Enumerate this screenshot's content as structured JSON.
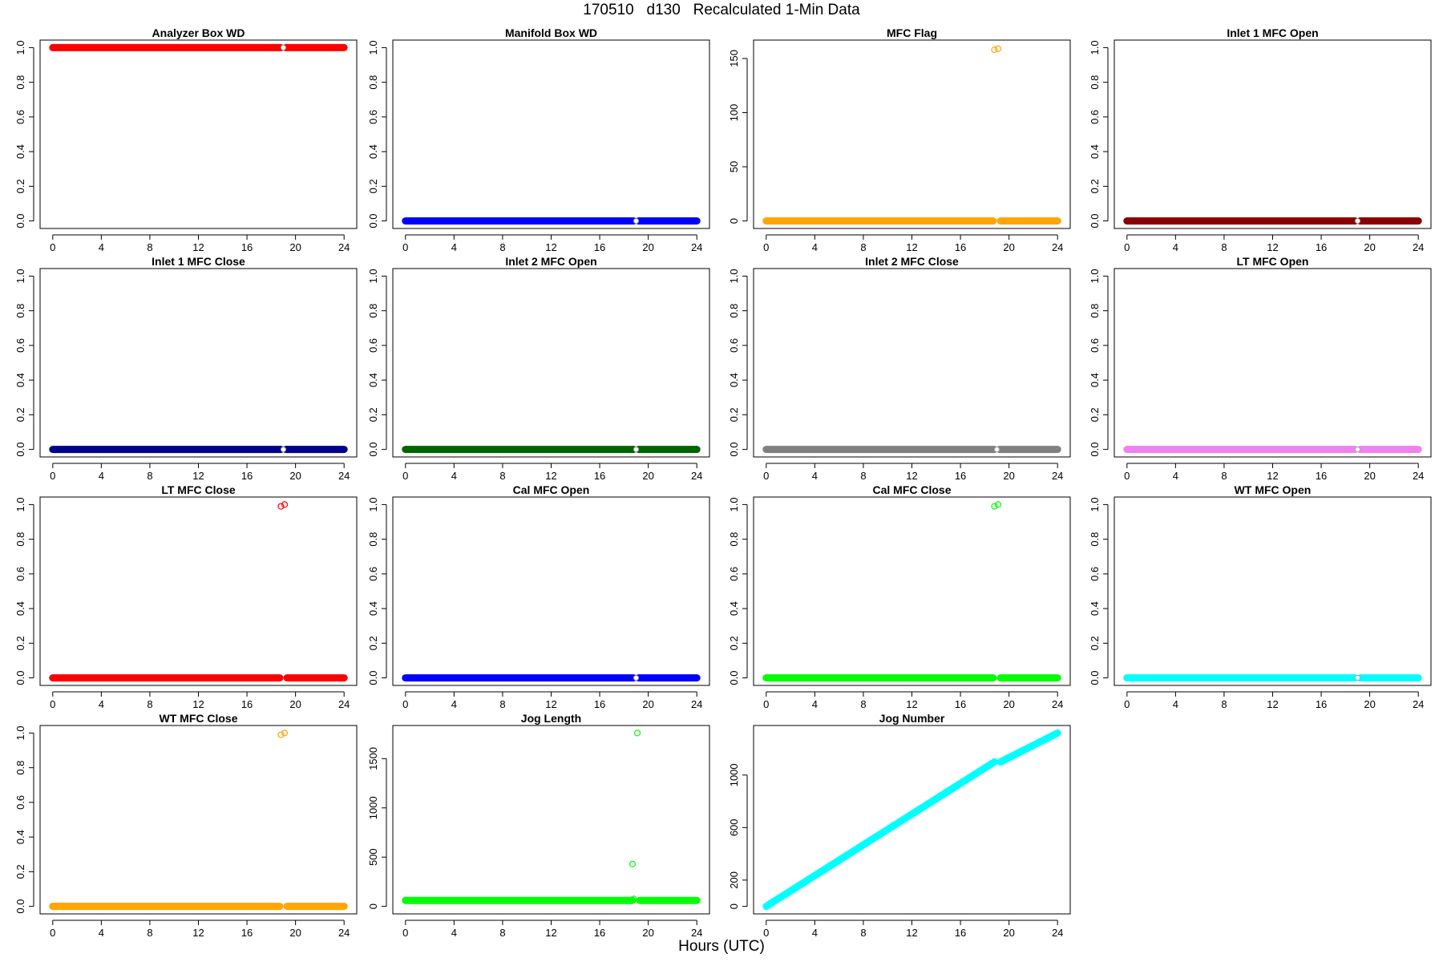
{
  "figure": {
    "title": "170510   d130   Recalculated 1-Min Data",
    "xlabel": "Hours (UTC)"
  },
  "chart_data": [
    {
      "type": "scatter",
      "title": "Analyzer Box WD",
      "color": "#ff0000",
      "xlim": [
        0,
        24
      ],
      "ylim": [
        0,
        1
      ],
      "xticks": [
        0,
        4,
        8,
        12,
        16,
        20,
        24
      ],
      "yticks": [
        0,
        0.2,
        0.4,
        0.6,
        0.8,
        1
      ],
      "ytick_labels": [
        "0.0",
        "0.2",
        "0.4",
        "0.6",
        "0.8",
        "1.0"
      ],
      "segments": [
        {
          "x": [
            0,
            18.8
          ],
          "y": 1
        },
        {
          "x": [
            19.2,
            24
          ],
          "y": 1
        }
      ],
      "points": [],
      "gap_markers": [
        {
          "x": 19.0,
          "y": 1
        }
      ]
    },
    {
      "type": "scatter",
      "title": "Manifold Box WD",
      "color": "#0000ff",
      "xlim": [
        0,
        24
      ],
      "ylim": [
        0,
        1
      ],
      "xticks": [
        0,
        4,
        8,
        12,
        16,
        20,
        24
      ],
      "yticks": [
        0,
        0.2,
        0.4,
        0.6,
        0.8,
        1
      ],
      "ytick_labels": [
        "0.0",
        "0.2",
        "0.4",
        "0.6",
        "0.8",
        "1.0"
      ],
      "segments": [
        {
          "x": [
            0,
            18.8
          ],
          "y": 0
        },
        {
          "x": [
            19.2,
            24
          ],
          "y": 0
        }
      ],
      "points": [],
      "gap_markers": [
        {
          "x": 19.0,
          "y": 0
        }
      ]
    },
    {
      "type": "scatter",
      "title": "MFC Flag",
      "color": "#ffa500",
      "xlim": [
        0,
        24
      ],
      "ylim": [
        0,
        160
      ],
      "xticks": [
        0,
        4,
        8,
        12,
        16,
        20,
        24
      ],
      "yticks": [
        0,
        50,
        100,
        150
      ],
      "ytick_labels": [
        "0",
        "50",
        "100",
        "150"
      ],
      "segments": [
        {
          "x": [
            0,
            18.7
          ],
          "y": 0
        },
        {
          "x": [
            19.3,
            24
          ],
          "y": 0
        }
      ],
      "points": [
        {
          "x": 18.8,
          "y": 158
        },
        {
          "x": 19.1,
          "y": 159
        }
      ],
      "gap_markers": []
    },
    {
      "type": "scatter",
      "title": "Inlet 1 MFC Open",
      "color": "#8b0000",
      "xlim": [
        0,
        24
      ],
      "ylim": [
        0,
        1
      ],
      "xticks": [
        0,
        4,
        8,
        12,
        16,
        20,
        24
      ],
      "yticks": [
        0,
        0.2,
        0.4,
        0.6,
        0.8,
        1
      ],
      "ytick_labels": [
        "0.0",
        "0.2",
        "0.4",
        "0.6",
        "0.8",
        "1.0"
      ],
      "segments": [
        {
          "x": [
            0,
            18.8
          ],
          "y": 0
        },
        {
          "x": [
            19.2,
            24
          ],
          "y": 0
        }
      ],
      "points": [],
      "gap_markers": [
        {
          "x": 19.0,
          "y": 0
        }
      ]
    },
    {
      "type": "scatter",
      "title": "Inlet 1 MFC Close",
      "color": "#00008b",
      "xlim": [
        0,
        24
      ],
      "ylim": [
        0,
        1
      ],
      "xticks": [
        0,
        4,
        8,
        12,
        16,
        20,
        24
      ],
      "yticks": [
        0,
        0.2,
        0.4,
        0.6,
        0.8,
        1
      ],
      "ytick_labels": [
        "0.0",
        "0.2",
        "0.4",
        "0.6",
        "0.8",
        "1.0"
      ],
      "segments": [
        {
          "x": [
            0,
            18.8
          ],
          "y": 0
        },
        {
          "x": [
            19.2,
            24
          ],
          "y": 0
        }
      ],
      "points": [],
      "gap_markers": [
        {
          "x": 19.0,
          "y": 0
        }
      ]
    },
    {
      "type": "scatter",
      "title": "Inlet 2 MFC Open",
      "color": "#006400",
      "xlim": [
        0,
        24
      ],
      "ylim": [
        0,
        1
      ],
      "xticks": [
        0,
        4,
        8,
        12,
        16,
        20,
        24
      ],
      "yticks": [
        0,
        0.2,
        0.4,
        0.6,
        0.8,
        1
      ],
      "ytick_labels": [
        "0.0",
        "0.2",
        "0.4",
        "0.6",
        "0.8",
        "1.0"
      ],
      "segments": [
        {
          "x": [
            0,
            18.8
          ],
          "y": 0
        },
        {
          "x": [
            19.2,
            24
          ],
          "y": 0
        }
      ],
      "points": [],
      "gap_markers": [
        {
          "x": 19.0,
          "y": 0
        }
      ]
    },
    {
      "type": "scatter",
      "title": "Inlet 2 MFC Close",
      "color": "#808080",
      "xlim": [
        0,
        24
      ],
      "ylim": [
        0,
        1
      ],
      "xticks": [
        0,
        4,
        8,
        12,
        16,
        20,
        24
      ],
      "yticks": [
        0,
        0.2,
        0.4,
        0.6,
        0.8,
        1
      ],
      "ytick_labels": [
        "0.0",
        "0.2",
        "0.4",
        "0.6",
        "0.8",
        "1.0"
      ],
      "segments": [
        {
          "x": [
            0,
            18.8
          ],
          "y": 0
        },
        {
          "x": [
            19.2,
            24
          ],
          "y": 0
        }
      ],
      "points": [],
      "gap_markers": [
        {
          "x": 19.0,
          "y": 0
        }
      ]
    },
    {
      "type": "scatter",
      "title": "LT MFC Open",
      "color": "#ee82ee",
      "xlim": [
        0,
        24
      ],
      "ylim": [
        0,
        1
      ],
      "xticks": [
        0,
        4,
        8,
        12,
        16,
        20,
        24
      ],
      "yticks": [
        0,
        0.2,
        0.4,
        0.6,
        0.8,
        1
      ],
      "ytick_labels": [
        "0.0",
        "0.2",
        "0.4",
        "0.6",
        "0.8",
        "1.0"
      ],
      "segments": [
        {
          "x": [
            0,
            18.8
          ],
          "y": 0
        },
        {
          "x": [
            19.2,
            24
          ],
          "y": 0
        }
      ],
      "points": [],
      "gap_markers": [
        {
          "x": 19.0,
          "y": 0
        }
      ]
    },
    {
      "type": "scatter",
      "title": "LT MFC Close",
      "color": "#ff0000",
      "xlim": [
        0,
        24
      ],
      "ylim": [
        0,
        1
      ],
      "xticks": [
        0,
        4,
        8,
        12,
        16,
        20,
        24
      ],
      "yticks": [
        0,
        0.2,
        0.4,
        0.6,
        0.8,
        1
      ],
      "ytick_labels": [
        "0.0",
        "0.2",
        "0.4",
        "0.6",
        "0.8",
        "1.0"
      ],
      "segments": [
        {
          "x": [
            0,
            18.7
          ],
          "y": 0
        },
        {
          "x": [
            19.3,
            24
          ],
          "y": 0
        }
      ],
      "points": [
        {
          "x": 18.8,
          "y": 0.99
        },
        {
          "x": 19.1,
          "y": 1.0
        }
      ],
      "gap_markers": []
    },
    {
      "type": "scatter",
      "title": "Cal MFC Open",
      "color": "#0000ff",
      "xlim": [
        0,
        24
      ],
      "ylim": [
        0,
        1
      ],
      "xticks": [
        0,
        4,
        8,
        12,
        16,
        20,
        24
      ],
      "yticks": [
        0,
        0.2,
        0.4,
        0.6,
        0.8,
        1
      ],
      "ytick_labels": [
        "0.0",
        "0.2",
        "0.4",
        "0.6",
        "0.8",
        "1.0"
      ],
      "segments": [
        {
          "x": [
            0,
            18.8
          ],
          "y": 0
        },
        {
          "x": [
            19.2,
            24
          ],
          "y": 0
        }
      ],
      "points": [],
      "gap_markers": [
        {
          "x": 19.0,
          "y": 0
        }
      ]
    },
    {
      "type": "scatter",
      "title": "Cal MFC Close",
      "color": "#00ff00",
      "xlim": [
        0,
        24
      ],
      "ylim": [
        0,
        1
      ],
      "xticks": [
        0,
        4,
        8,
        12,
        16,
        20,
        24
      ],
      "yticks": [
        0,
        0.2,
        0.4,
        0.6,
        0.8,
        1
      ],
      "ytick_labels": [
        "0.0",
        "0.2",
        "0.4",
        "0.6",
        "0.8",
        "1.0"
      ],
      "segments": [
        {
          "x": [
            0,
            18.7
          ],
          "y": 0
        },
        {
          "x": [
            19.3,
            24
          ],
          "y": 0
        }
      ],
      "points": [
        {
          "x": 18.8,
          "y": 0.99
        },
        {
          "x": 19.1,
          "y": 1.0
        }
      ],
      "gap_markers": []
    },
    {
      "type": "scatter",
      "title": "WT MFC Open",
      "color": "#00ffff",
      "xlim": [
        0,
        24
      ],
      "ylim": [
        0,
        1
      ],
      "xticks": [
        0,
        4,
        8,
        12,
        16,
        20,
        24
      ],
      "yticks": [
        0,
        0.2,
        0.4,
        0.6,
        0.8,
        1
      ],
      "ytick_labels": [
        "0.0",
        "0.2",
        "0.4",
        "0.6",
        "0.8",
        "1.0"
      ],
      "segments": [
        {
          "x": [
            0,
            18.8
          ],
          "y": 0
        },
        {
          "x": [
            19.2,
            24
          ],
          "y": 0
        }
      ],
      "points": [],
      "gap_markers": [
        {
          "x": 19.0,
          "y": 0
        }
      ]
    },
    {
      "type": "scatter",
      "title": "WT MFC Close",
      "color": "#ffa500",
      "xlim": [
        0,
        24
      ],
      "ylim": [
        0,
        1
      ],
      "xticks": [
        0,
        4,
        8,
        12,
        16,
        20,
        24
      ],
      "yticks": [
        0,
        0.2,
        0.4,
        0.6,
        0.8,
        1
      ],
      "ytick_labels": [
        "0.0",
        "0.2",
        "0.4",
        "0.6",
        "0.8",
        "1.0"
      ],
      "segments": [
        {
          "x": [
            0,
            18.7
          ],
          "y": 0
        },
        {
          "x": [
            19.3,
            24
          ],
          "y": 0
        }
      ],
      "points": [
        {
          "x": 18.8,
          "y": 0.99
        },
        {
          "x": 19.1,
          "y": 1.0
        }
      ],
      "gap_markers": []
    },
    {
      "type": "scatter",
      "title": "Jog Length",
      "color": "#00ff00",
      "xlim": [
        0,
        24
      ],
      "ylim": [
        0,
        1760
      ],
      "xticks": [
        0,
        4,
        8,
        12,
        16,
        20,
        24
      ],
      "yticks": [
        0,
        500,
        1000,
        1500
      ],
      "ytick_labels": [
        "0",
        "500",
        "1000",
        "1500"
      ],
      "segments": [
        {
          "x": [
            0,
            18.7
          ],
          "y": 60
        },
        {
          "x": [
            19.3,
            24
          ],
          "y": 60
        }
      ],
      "points": [
        {
          "x": 18.7,
          "y": 430
        },
        {
          "x": 18.8,
          "y": 75
        },
        {
          "x": 19.1,
          "y": 1760
        }
      ],
      "gap_markers": []
    },
    {
      "type": "scatter",
      "title": "Jog Number",
      "color": "#00ffff",
      "xlim": [
        0,
        24
      ],
      "ylim": [
        0,
        1320
      ],
      "xticks": [
        0,
        4,
        8,
        12,
        16,
        20,
        24
      ],
      "yticks": [
        0,
        200,
        600,
        1000
      ],
      "ytick_labels": [
        "0",
        "200",
        "600",
        "1000"
      ],
      "segments": [
        {
          "x": [
            0,
            18.8
          ],
          "y": [
            0,
            1100
          ]
        },
        {
          "x": [
            19.3,
            24
          ],
          "y": [
            1100,
            1320
          ]
        }
      ],
      "points": [],
      "gap_markers": []
    }
  ]
}
